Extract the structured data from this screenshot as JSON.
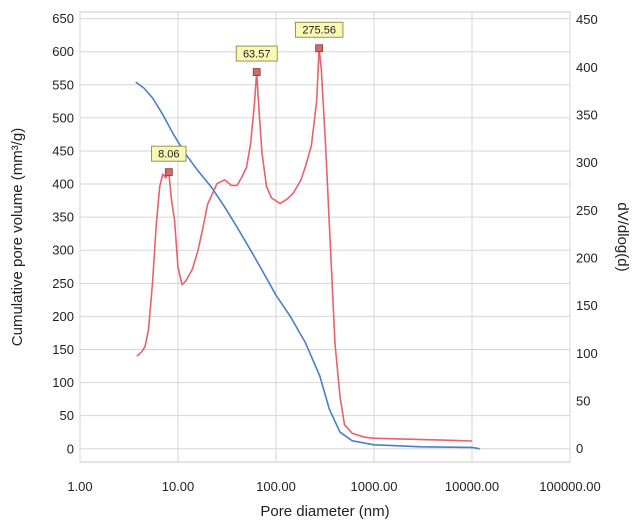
{
  "chart_data": {
    "type": "line",
    "xlabel": "Pore diameter (nm)",
    "ylabel_left": "Cumulative pore volume (mm³/g)",
    "ylabel_right": "dV/dlog(d)",
    "x_scale": "log",
    "xlim": [
      1,
      100000
    ],
    "ylim_left": [
      -20,
      660
    ],
    "ylim_right": [
      -14,
      458
    ],
    "x_ticks": [
      {
        "value": 1,
        "label": "1.00"
      },
      {
        "value": 10,
        "label": "10.00"
      },
      {
        "value": 100,
        "label": "100.00"
      },
      {
        "value": 1000,
        "label": "1000.00"
      },
      {
        "value": 10000,
        "label": "10000.00"
      },
      {
        "value": 100000,
        "label": "100000.00"
      }
    ],
    "y_ticks_left": [
      {
        "value": 0,
        "label": "0"
      },
      {
        "value": 50,
        "label": "50"
      },
      {
        "value": 100,
        "label": "100"
      },
      {
        "value": 150,
        "label": "150"
      },
      {
        "value": 200,
        "label": "200"
      },
      {
        "value": 250,
        "label": "250"
      },
      {
        "value": 300,
        "label": "300"
      },
      {
        "value": 350,
        "label": "350"
      },
      {
        "value": 400,
        "label": "400"
      },
      {
        "value": 450,
        "label": "450"
      },
      {
        "value": 500,
        "label": "500"
      },
      {
        "value": 550,
        "label": "550"
      },
      {
        "value": 600,
        "label": "600"
      },
      {
        "value": 650,
        "label": "650"
      }
    ],
    "y_ticks_right": [
      {
        "value": 0,
        "label": "0"
      },
      {
        "value": 50,
        "label": "50"
      },
      {
        "value": 100,
        "label": "100"
      },
      {
        "value": 150,
        "label": "150"
      },
      {
        "value": 200,
        "label": "200"
      },
      {
        "value": 250,
        "label": "250"
      },
      {
        "value": 300,
        "label": "300"
      },
      {
        "value": 350,
        "label": "350"
      },
      {
        "value": 400,
        "label": "400"
      },
      {
        "value": 450,
        "label": "450"
      }
    ],
    "grid": true,
    "series": [
      {
        "axis": "left",
        "color": "#4a7fc8",
        "x": [
          3.7,
          4.5,
          5.5,
          7,
          9,
          12,
          16,
          22,
          30,
          40,
          55,
          75,
          100,
          140,
          200,
          280,
          350,
          450,
          600,
          1000,
          3000,
          10000,
          12000
        ],
        "y": [
          554,
          545,
          530,
          505,
          475,
          445,
          420,
          395,
          365,
          335,
          300,
          265,
          232,
          200,
          160,
          110,
          60,
          25,
          12,
          6,
          3,
          2,
          0
        ]
      },
      {
        "axis": "right",
        "color": "#e8616e",
        "x": [
          3.8,
          4.0,
          4.3,
          4.6,
          5.0,
          5.5,
          6.0,
          6.5,
          7.0,
          7.5,
          8.06,
          8.6,
          9.2,
          10.0,
          11.0,
          12.0,
          14.0,
          16.0,
          18.0,
          20.0,
          25.0,
          30.0,
          35.0,
          40.0,
          45.0,
          50.0,
          55.0,
          60.0,
          63.57,
          67.0,
          72.0,
          80.0,
          90.0,
          100.0,
          110.0,
          130.0,
          150.0,
          180.0,
          200.0,
          230.0,
          260.0,
          275.56,
          290.0,
          320.0,
          360.0,
          400.0,
          450.0,
          500.0,
          600.0,
          800.0,
          1000.0,
          2000.0,
          5000.0,
          10000.0
        ],
        "y": [
          97,
          99,
          102,
          107,
          125,
          175,
          235,
          275,
          288,
          284,
          290,
          260,
          240,
          190,
          172,
          176,
          188,
          208,
          232,
          256,
          278,
          282,
          276,
          276,
          285,
          295,
          320,
          360,
          395,
          355,
          310,
          275,
          263,
          260,
          257,
          262,
          268,
          282,
          296,
          318,
          365,
          420,
          398,
          320,
          210,
          110,
          55,
          25,
          16,
          12,
          11,
          10,
          9,
          8
        ]
      }
    ],
    "annotations": [
      {
        "x": 8.06,
        "y": 290,
        "label": "8.06"
      },
      {
        "x": 63.57,
        "y": 395,
        "label": "63.57"
      },
      {
        "x": 275.56,
        "y": 420,
        "label": "275.56"
      }
    ]
  }
}
